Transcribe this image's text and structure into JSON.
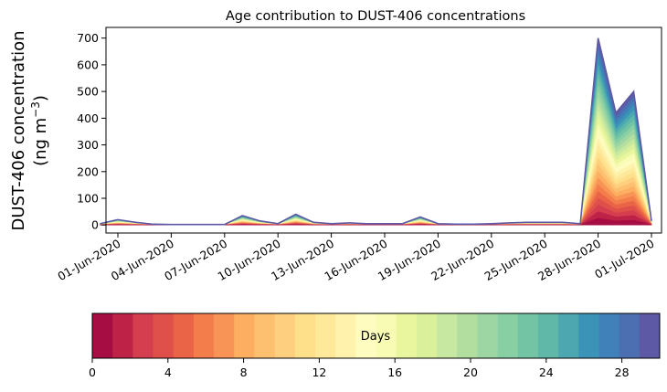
{
  "chart_data": {
    "type": "area",
    "title": "Age contribution to DUST-406 concentrations",
    "ylabel_line1": "DUST-406 concentration",
    "ylabel_line2": "(ng m",
    "ylabel_unit_sup": "−3",
    "ylabel_close": ")",
    "x_start_date": "2020-05-31",
    "x_end_date": "2020-07-01",
    "x": [
      "2020-05-31",
      "2020-06-01",
      "2020-06-02",
      "2020-06-03",
      "2020-06-04",
      "2020-06-05",
      "2020-06-06",
      "2020-06-07",
      "2020-06-08",
      "2020-06-09",
      "2020-06-10",
      "2020-06-11",
      "2020-06-12",
      "2020-06-13",
      "2020-06-14",
      "2020-06-15",
      "2020-06-16",
      "2020-06-17",
      "2020-06-18",
      "2020-06-19",
      "2020-06-20",
      "2020-06-21",
      "2020-06-22",
      "2020-06-23",
      "2020-06-24",
      "2020-06-25",
      "2020-06-26",
      "2020-06-27",
      "2020-06-28",
      "2020-06-29",
      "2020-06-30",
      "2020-07-01"
    ],
    "total": [
      5,
      20,
      10,
      3,
      2,
      2,
      2,
      2,
      35,
      15,
      5,
      40,
      10,
      5,
      8,
      5,
      5,
      5,
      30,
      5,
      3,
      3,
      5,
      8,
      10,
      10,
      10,
      5,
      700,
      420,
      500,
      15
    ],
    "ylim": [
      -30,
      740
    ],
    "yticks": [
      0,
      100,
      200,
      300,
      400,
      500,
      600,
      700
    ],
    "xticks": [
      {
        "date": "2020-06-01",
        "label": "01-Jun-2020"
      },
      {
        "date": "2020-06-04",
        "label": "04-Jun-2020"
      },
      {
        "date": "2020-06-07",
        "label": "07-Jun-2020"
      },
      {
        "date": "2020-06-10",
        "label": "10-Jun-2020"
      },
      {
        "date": "2020-06-13",
        "label": "13-Jun-2020"
      },
      {
        "date": "2020-06-16",
        "label": "16-Jun-2020"
      },
      {
        "date": "2020-06-19",
        "label": "19-Jun-2020"
      },
      {
        "date": "2020-06-22",
        "label": "22-Jun-2020"
      },
      {
        "date": "2020-06-25",
        "label": "25-Jun-2020"
      },
      {
        "date": "2020-06-28",
        "label": "28-Jun-2020"
      },
      {
        "date": "2020-07-01",
        "label": "01-Jul-2020"
      }
    ],
    "colorbar": {
      "label": "Days",
      "range": [
        0,
        30
      ],
      "ticks": [
        0,
        4,
        8,
        12,
        16,
        20,
        24,
        28
      ],
      "colors": [
        "#a50d43",
        "#be2247",
        "#d53e4f",
        "#e0504b",
        "#ea6447",
        "#f47d4c",
        "#f89456",
        "#fdae61",
        "#fdbf70",
        "#fecf7e",
        "#fee08b",
        "#fee99b",
        "#fff2ad",
        "#fffcbf",
        "#f7fbb4",
        "#eaf69e",
        "#daf09a",
        "#c7e8a1",
        "#b2df9f",
        "#9ed6a3",
        "#88cfa4",
        "#72c4a5",
        "#5fb8a8",
        "#4ca7b0",
        "#3b93b7",
        "#3f81b8",
        "#4c6fb1",
        "#5e59a5"
      ]
    }
  }
}
